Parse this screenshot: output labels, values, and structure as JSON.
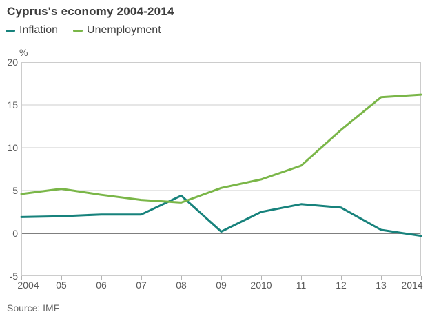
{
  "header": {
    "title": "Cyprus's economy 2004-2014"
  },
  "legend": [
    {
      "label": "Inflation",
      "color": "#17827C"
    },
    {
      "label": "Unemployment",
      "color": "#7AB648"
    }
  ],
  "source": {
    "label": "Source: IMF"
  },
  "chart_data": {
    "type": "line",
    "title": "Cyprus's economy 2004-2014",
    "unit_label": "%",
    "x_labels": [
      "2004",
      "05",
      "06",
      "07",
      "08",
      "09",
      "2010",
      "11",
      "12",
      "13",
      "2014"
    ],
    "x": [
      2004,
      2005,
      2006,
      2007,
      2008,
      2009,
      2010,
      2011,
      2012,
      2013,
      2014
    ],
    "series": [
      {
        "name": "Inflation",
        "color": "#17827C",
        "values": [
          1.9,
          2.0,
          2.2,
          2.2,
          4.4,
          0.2,
          2.5,
          3.4,
          3.0,
          0.4,
          -0.3
        ]
      },
      {
        "name": "Unemployment",
        "color": "#7AB648",
        "values": [
          4.6,
          5.2,
          4.5,
          3.9,
          3.6,
          5.3,
          6.3,
          7.9,
          12.1,
          15.9,
          16.2
        ]
      }
    ],
    "ylim": [
      -5,
      20
    ],
    "yticks": [
      20,
      15,
      10,
      5,
      0,
      -5
    ],
    "grid": "horizontal",
    "zero_line": true,
    "legend_position": "top-left",
    "colors": {
      "gridline": "#cccccc",
      "zero_line": "#7f7f7f",
      "axis_spine": "#cccccc",
      "tick": "#b3b3b3"
    }
  }
}
